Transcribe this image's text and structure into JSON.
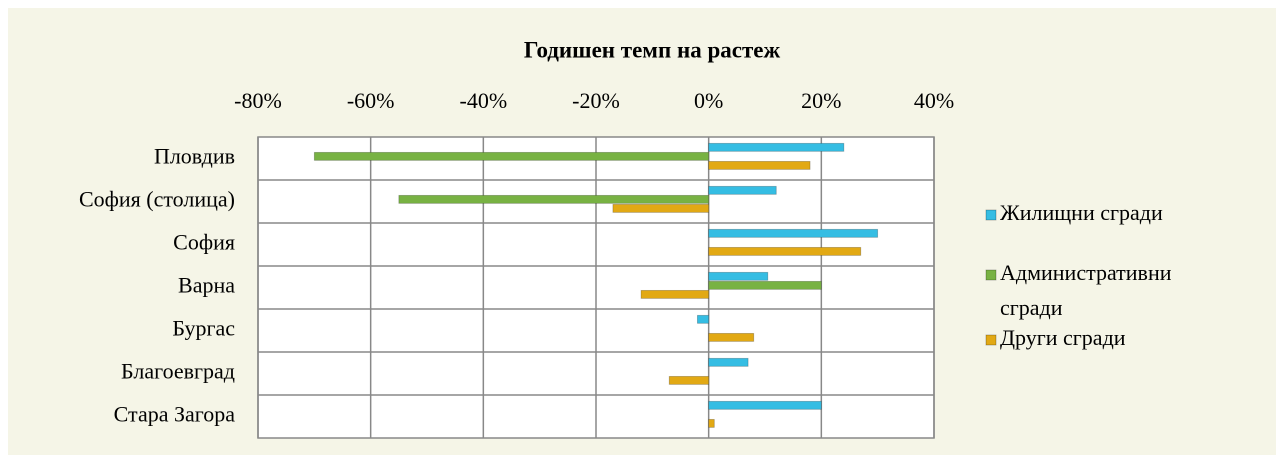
{
  "chart_data": {
    "type": "hbar",
    "title": "Годишен темп на растеж",
    "categories": [
      "Пловдив",
      "София (столица)",
      "София",
      "Варна",
      "Бургас",
      "Благоевград",
      "Стара Загора"
    ],
    "series": [
      {
        "name": "Жилищни сгради",
        "color": "#35bde3",
        "values": [
          24,
          12,
          30,
          10.5,
          -2,
          7,
          20
        ]
      },
      {
        "name": "Административни сгради",
        "color": "#78b243",
        "values": [
          -70,
          -55,
          null,
          20,
          null,
          null,
          null
        ]
      },
      {
        "name": "Други сгради",
        "color": "#e2a914",
        "values": [
          18,
          -17,
          27,
          -12,
          8,
          -7,
          1
        ]
      }
    ],
    "xlim": [
      -80,
      40
    ],
    "xticks": [
      {
        "value": -80,
        "label": "-80%"
      },
      {
        "value": -60,
        "label": "-60%"
      },
      {
        "value": -40,
        "label": "-40%"
      },
      {
        "value": -20,
        "label": "-20%"
      },
      {
        "value": 0,
        "label": "0%"
      },
      {
        "value": 20,
        "label": "20%"
      },
      {
        "value": 40,
        "label": "40%"
      }
    ],
    "grid": true,
    "legend": "right"
  }
}
